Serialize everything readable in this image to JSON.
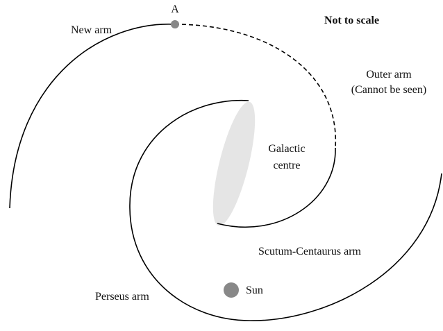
{
  "note": "Not to scale",
  "point_a": "A",
  "arms": {
    "new": "New arm",
    "outer": [
      "Outer arm",
      "(Cannot be seen)"
    ],
    "scutum_centaurus": "Scutum-Centaurus arm",
    "perseus": "Perseus arm"
  },
  "galactic_centre": [
    "Galactic",
    "centre"
  ],
  "sun": "Sun"
}
